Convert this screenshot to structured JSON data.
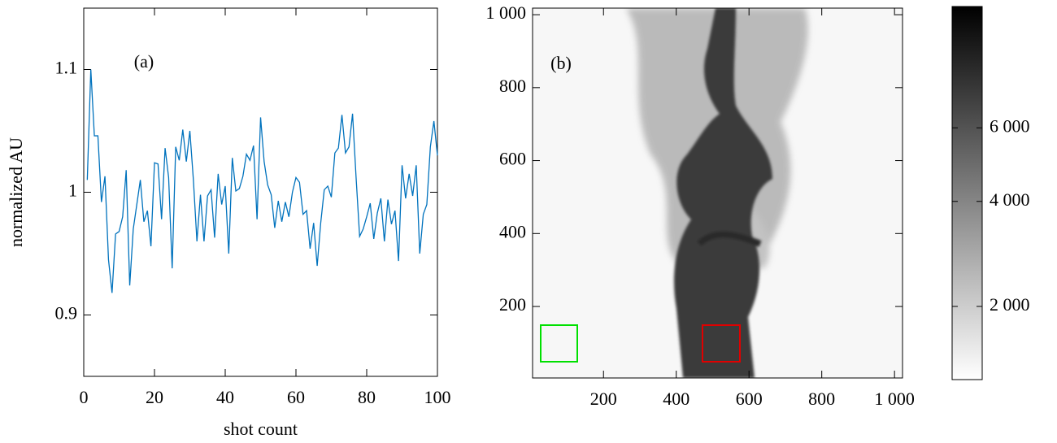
{
  "chart_data": [
    {
      "type": "line",
      "label": "(a)",
      "xlabel": "shot count",
      "ylabel": "normalized AU",
      "xlim": [
        0,
        100
      ],
      "ylim": [
        0.85,
        1.15
      ],
      "xticks": [
        0,
        20,
        40,
        60,
        80,
        100
      ],
      "yticks": [
        0.9,
        1,
        1.1
      ],
      "series": [
        {
          "color": "#0072bd",
          "x": [
            1,
            2,
            3,
            4,
            5,
            6,
            7,
            8,
            9,
            10,
            11,
            12,
            13,
            14,
            15,
            16,
            17,
            18,
            19,
            20,
            21,
            22,
            23,
            24,
            25,
            26,
            27,
            28,
            29,
            30,
            31,
            32,
            33,
            34,
            35,
            36,
            37,
            38,
            39,
            40,
            41,
            42,
            43,
            44,
            45,
            46,
            47,
            48,
            49,
            50,
            51,
            52,
            53,
            54,
            55,
            56,
            57,
            58,
            59,
            60,
            61,
            62,
            63,
            64,
            65,
            66,
            67,
            68,
            69,
            70,
            71,
            72,
            73,
            74,
            75,
            76,
            77,
            78,
            79,
            80,
            81,
            82,
            83,
            84,
            85,
            86,
            87,
            88,
            89,
            90,
            91,
            92,
            93,
            94,
            95,
            96,
            97,
            98,
            99,
            100
          ],
          "values": [
            1.01,
            1.1,
            1.046,
            1.046,
            0.992,
            1.013,
            0.945,
            0.918,
            0.966,
            0.968,
            0.98,
            1.018,
            0.924,
            0.97,
            0.99,
            1.01,
            0.976,
            0.985,
            0.956,
            1.024,
            1.023,
            0.978,
            1.036,
            1.012,
            0.938,
            1.037,
            1.026,
            1.051,
            1.025,
            1.05,
            1.01,
            0.96,
            0.998,
            0.96,
            0.997,
            1.002,
            0.963,
            1.015,
            0.99,
            1.005,
            0.95,
            1.028,
            1.001,
            1.003,
            1.013,
            1.031,
            1.026,
            1.038,
            0.978,
            1.061,
            1.025,
            1.006,
            0.998,
            0.971,
            0.993,
            0.976,
            0.992,
            0.98,
            1.0,
            1.012,
            1.008,
            0.982,
            0.985,
            0.954,
            0.975,
            0.94,
            0.975,
            1.002,
            1.005,
            0.996,
            1.032,
            1.036,
            1.063,
            1.032,
            1.037,
            1.064,
            1.012,
            0.964,
            0.97,
            0.98,
            0.991,
            0.962,
            0.983,
            0.995,
            0.96,
            0.994,
            0.974,
            0.985,
            0.944,
            1.022,
            0.995,
            1.015,
            0.997,
            1.022,
            0.95,
            0.982,
            0.99,
            1.037,
            1.058,
            1.03
          ]
        }
      ]
    },
    {
      "type": "image",
      "label": "(b)",
      "xlim": [
        5,
        1022
      ],
      "ylim": [
        4,
        1018
      ],
      "xticks": [
        200,
        400,
        600,
        800,
        {
          "value": 1000,
          "label": "1 000"
        }
      ],
      "yticks": [
        200,
        400,
        600,
        800,
        {
          "value": 1000,
          "label": "1 000"
        }
      ],
      "colorbar": {
        "zlim": [
          1100,
          10600
        ],
        "power": 0.33,
        "ticks": [
          {
            "value": 2000,
            "label": "2 000"
          },
          {
            "value": 4000,
            "label": "4 000"
          },
          {
            "value": 6000,
            "label": "6 000"
          }
        ]
      }
    }
  ]
}
